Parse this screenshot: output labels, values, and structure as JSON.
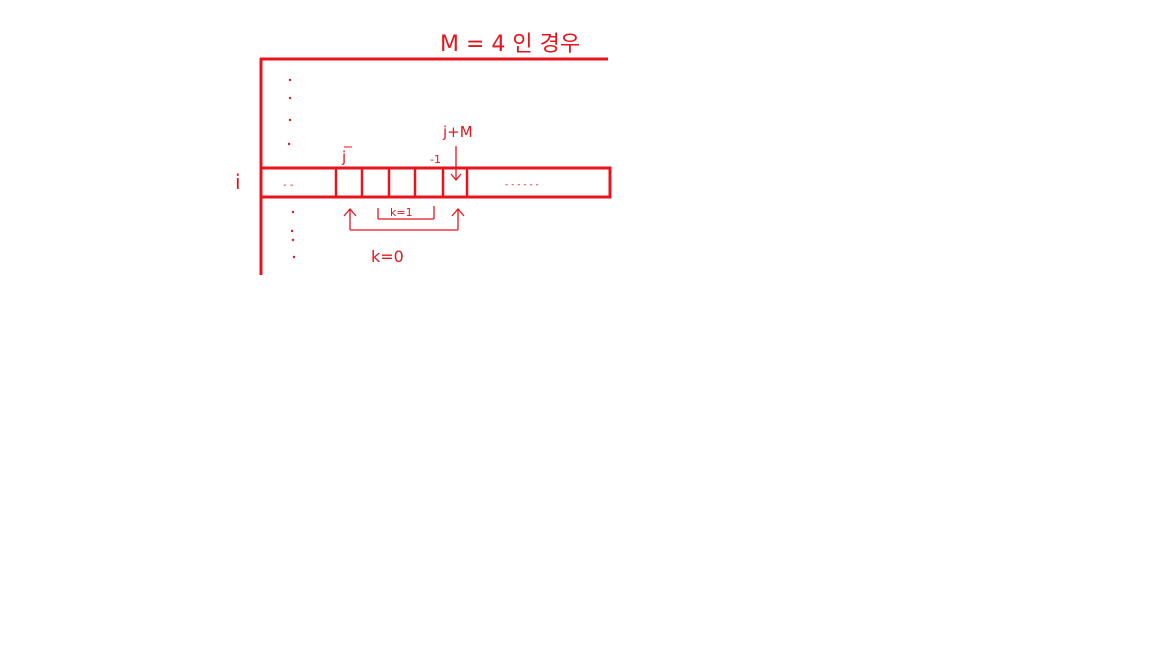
{
  "title": "M = 4 인 경우",
  "labels": {
    "row_i": "i",
    "col_j": "j",
    "col_j_plus_m": "j+M",
    "minus_one": "-1",
    "k1": "k=1",
    "k0": "k=0",
    "left_ellipsis": "- -",
    "right_ellipsis": "- - - - - -"
  },
  "colors": {
    "ink": "#e8141c",
    "background": "#ffffff"
  }
}
